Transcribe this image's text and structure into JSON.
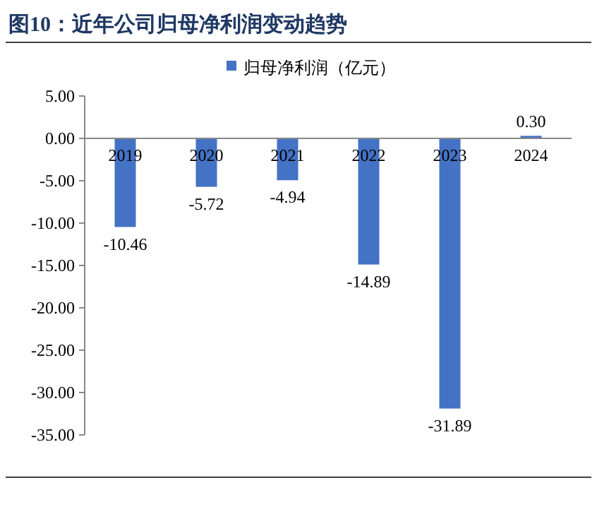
{
  "chart_data": {
    "type": "bar",
    "title": "图10：近年公司归母净利润变动趋势",
    "categories": [
      "2019",
      "2020",
      "2021",
      "2022",
      "2023",
      "2024"
    ],
    "series": [
      {
        "name": "归母净利润（亿元）",
        "color": "#4472c4",
        "values": [
          -10.46,
          -5.72,
          -4.94,
          -14.89,
          -31.89,
          0.3
        ],
        "value_labels": [
          "-10.46",
          "-5.72",
          "-4.94",
          "-14.89",
          "-31.89",
          "0.30"
        ]
      }
    ],
    "ylim": [
      -35,
      5
    ],
    "yticks": [
      {
        "value": 5,
        "label": "5.00"
      },
      {
        "value": 0,
        "label": "0.00"
      },
      {
        "value": -5,
        "label": "-5.00"
      },
      {
        "value": -10,
        "label": "-10.00"
      },
      {
        "value": -15,
        "label": "-15.00"
      },
      {
        "value": -20,
        "label": "-20.00"
      },
      {
        "value": -25,
        "label": "-25.00"
      },
      {
        "value": -30,
        "label": "-30.00"
      },
      {
        "value": -35,
        "label": "-35.00"
      }
    ],
    "grid": false,
    "legend": "top"
  }
}
